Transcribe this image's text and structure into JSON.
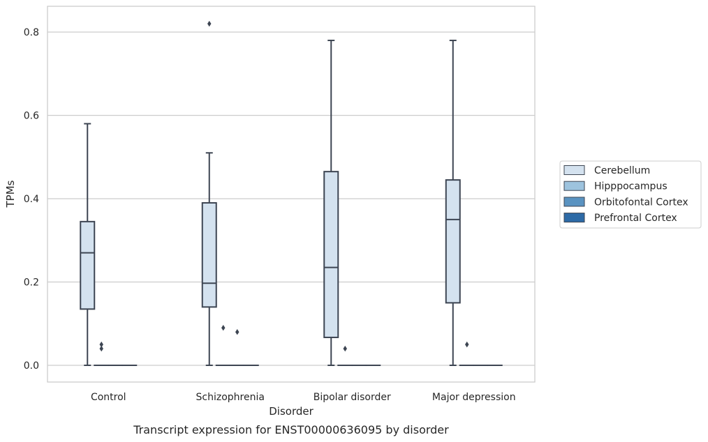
{
  "chart_data": {
    "type": "box",
    "xlabel": "Disorder",
    "ylabel": "TPMs",
    "caption": "Transcript expression for ENST00000636095 by disorder",
    "ylim": [
      -0.04,
      0.86
    ],
    "yticks": [
      "0.0",
      "0.2",
      "0.4",
      "0.6",
      "0.8"
    ],
    "grid": "horizontal",
    "legend_position": "right",
    "categories": [
      "Control",
      "Schizophrenia",
      "Bipolar disorder",
      "Major depression"
    ],
    "series": [
      {
        "name": "Cerebellum",
        "color": "#d4e2ef",
        "boxes": [
          {
            "min": 0.0,
            "q1": 0.135,
            "median": 0.27,
            "q3": 0.345,
            "max": 0.58,
            "outliers": []
          },
          {
            "min": 0.0,
            "q1": 0.14,
            "median": 0.197,
            "q3": 0.39,
            "max": 0.51,
            "outliers": [
              0.82
            ]
          },
          {
            "min": 0.0,
            "q1": 0.067,
            "median": 0.235,
            "q3": 0.465,
            "max": 0.78,
            "outliers": []
          },
          {
            "min": 0.0,
            "q1": 0.15,
            "median": 0.35,
            "q3": 0.445,
            "max": 0.78,
            "outliers": []
          }
        ]
      },
      {
        "name": "Hipppocampus",
        "color": "#9dc3de",
        "boxes": [
          {
            "min": 0.0,
            "q1": 0.0,
            "median": 0.0,
            "q3": 0.0,
            "max": 0.0,
            "outliers": [
              0.04,
              0.05
            ]
          },
          {
            "min": 0.0,
            "q1": 0.0,
            "median": 0.0,
            "q3": 0.0,
            "max": 0.0,
            "outliers": [
              0.09
            ]
          },
          {
            "min": 0.0,
            "q1": 0.0,
            "median": 0.0,
            "q3": 0.0,
            "max": 0.0,
            "outliers": [
              0.04
            ]
          },
          {
            "min": 0.0,
            "q1": 0.0,
            "median": 0.0,
            "q3": 0.0,
            "max": 0.0,
            "outliers": [
              0.05
            ]
          }
        ]
      },
      {
        "name": "Orbitofontal Cortex",
        "color": "#5a93c1",
        "boxes": [
          {
            "min": 0.0,
            "q1": 0.0,
            "median": 0.0,
            "q3": 0.0,
            "max": 0.0,
            "outliers": []
          },
          {
            "min": 0.0,
            "q1": 0.0,
            "median": 0.0,
            "q3": 0.0,
            "max": 0.0,
            "outliers": [
              0.08
            ]
          },
          {
            "min": 0.0,
            "q1": 0.0,
            "median": 0.0,
            "q3": 0.0,
            "max": 0.0,
            "outliers": []
          },
          {
            "min": 0.0,
            "q1": 0.0,
            "median": 0.0,
            "q3": 0.0,
            "max": 0.0,
            "outliers": []
          }
        ]
      },
      {
        "name": "Prefrontal Cortex",
        "color": "#2d6aa6",
        "boxes": [
          {
            "min": 0.0,
            "q1": 0.0,
            "median": 0.0,
            "q3": 0.0,
            "max": 0.0,
            "outliers": []
          },
          {
            "min": 0.0,
            "q1": 0.0,
            "median": 0.0,
            "q3": 0.0,
            "max": 0.0,
            "outliers": []
          },
          {
            "min": 0.0,
            "q1": 0.0,
            "median": 0.0,
            "q3": 0.0,
            "max": 0.0,
            "outliers": []
          },
          {
            "min": 0.0,
            "q1": 0.0,
            "median": 0.0,
            "q3": 0.0,
            "max": 0.0,
            "outliers": []
          }
        ]
      }
    ]
  },
  "colors": {
    "grid": "#cccccc",
    "frame": "#cccccc",
    "box_edge": "#3d4552",
    "background": "#ffffff"
  }
}
